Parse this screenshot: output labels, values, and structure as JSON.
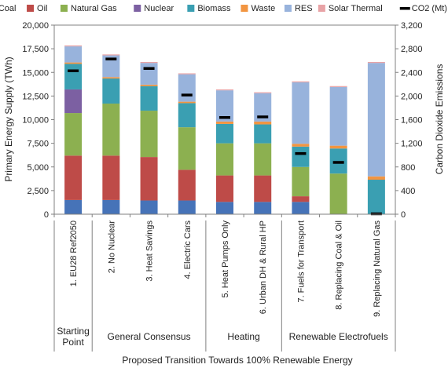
{
  "chart_data": {
    "type": "bar",
    "stacked": true,
    "categories": [
      "1. EU28 Ref2050",
      "2. No Nuclear",
      "3. Heat Savings",
      "4. Electric Cars",
      "5. Heat Pumps Only",
      "6. Urban DH & Rural HP",
      "7. Fuels for Transport",
      "8. Replacing Coal & Oil",
      "9. Replacing Natural Gas"
    ],
    "groups": [
      {
        "label": "Starting Point",
        "start": 0,
        "end": 0
      },
      {
        "label": "General Consensus",
        "start": 1,
        "end": 3
      },
      {
        "label": "Heating",
        "start": 4,
        "end": 5
      },
      {
        "label": "Renewable Electrofuels",
        "start": 6,
        "end": 8
      }
    ],
    "series": [
      {
        "name": "Coal",
        "color": "#4673b8",
        "values": [
          1500,
          1500,
          1450,
          1450,
          1300,
          1300,
          1300,
          0,
          0
        ]
      },
      {
        "name": "Oil",
        "color": "#be4b48",
        "values": [
          4700,
          4700,
          4600,
          3250,
          2800,
          2800,
          600,
          0,
          0
        ]
      },
      {
        "name": "Natural Gas",
        "color": "#8cb050",
        "values": [
          4500,
          5500,
          4900,
          4500,
          3400,
          3400,
          3100,
          4300,
          0
        ]
      },
      {
        "name": "Nuclear",
        "color": "#7c60a2",
        "values": [
          2500,
          0,
          0,
          0,
          0,
          0,
          0,
          0,
          0
        ]
      },
      {
        "name": "Biomass",
        "color": "#3a9fb2",
        "values": [
          2700,
          2650,
          2600,
          2550,
          2050,
          2000,
          2150,
          2650,
          3650
        ]
      },
      {
        "name": "Waste",
        "color": "#f29541",
        "values": [
          150,
          150,
          150,
          150,
          250,
          300,
          300,
          300,
          350
        ]
      },
      {
        "name": "RES",
        "color": "#98b3dc",
        "values": [
          1700,
          2300,
          2300,
          2900,
          3300,
          3000,
          6500,
          6200,
          12000
        ]
      },
      {
        "name": "Solar Thermal",
        "color": "#e8a3a6",
        "values": [
          100,
          100,
          100,
          100,
          100,
          100,
          100,
          100,
          100
        ]
      }
    ],
    "line_series": {
      "name": "CO2 (Mt)",
      "color": "#000000",
      "axis": "right",
      "values": [
        2430,
        2630,
        2470,
        2020,
        1640,
        1650,
        1030,
        880,
        10
      ]
    },
    "ylabel": "Primary Energy Supply (TWh)",
    "y2label": "Carbon Dioxide Emissions",
    "xlabel": "Proposed Transition Towards 100% Renewable Energy",
    "ylim": [
      0,
      20000
    ],
    "y2lim": [
      0,
      3200
    ],
    "yticks": [
      "0",
      "2,500",
      "5,000",
      "7,500",
      "10,000",
      "12,500",
      "15,000",
      "17,500",
      "20,000"
    ],
    "y2ticks": [
      "0",
      "400",
      "800",
      "1,200",
      "1,600",
      "2,000",
      "2,400",
      "2,800",
      "3,200"
    ],
    "legend_position": "top",
    "grid": false
  }
}
